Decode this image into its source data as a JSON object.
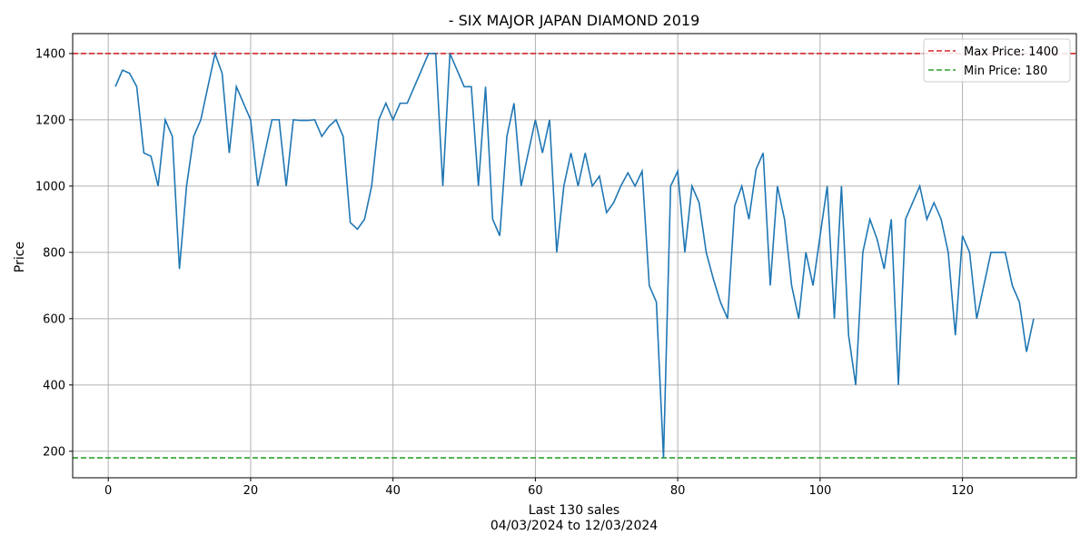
{
  "chart_data": {
    "type": "line",
    "title": "- SIX MAJOR JAPAN DIAMOND 2019",
    "xlabel": "Last 130 sales",
    "xlabel_sub": "04/03/2024 to 12/03/2024",
    "ylabel": "Price",
    "xlim": [
      -5,
      136
    ],
    "ylim": [
      120,
      1460
    ],
    "x_ticks": [
      0,
      20,
      40,
      60,
      80,
      100,
      120
    ],
    "y_ticks": [
      200,
      400,
      600,
      800,
      1000,
      1200,
      1400
    ],
    "grid": true,
    "legend_position": "top-right",
    "series": [
      {
        "color": "#1f77b4",
        "x": [
          1,
          2,
          3,
          4,
          5,
          6,
          7,
          8,
          9,
          10,
          11,
          12,
          13,
          14,
          15,
          16,
          17,
          18,
          19,
          20,
          21,
          22,
          23,
          24,
          25,
          26,
          27,
          28,
          29,
          30,
          31,
          32,
          33,
          34,
          35,
          36,
          37,
          38,
          39,
          40,
          41,
          42,
          43,
          44,
          45,
          46,
          47,
          48,
          49,
          50,
          51,
          52,
          53,
          54,
          55,
          56,
          57,
          58,
          59,
          60,
          61,
          62,
          63,
          64,
          65,
          66,
          67,
          68,
          69,
          70,
          71,
          72,
          73,
          74,
          75,
          76,
          77,
          78,
          79,
          80,
          81,
          82,
          83,
          84,
          85,
          86,
          87,
          88,
          89,
          90,
          91,
          92,
          93,
          94,
          95,
          96,
          97,
          98,
          99,
          100,
          101,
          102,
          103,
          104,
          105,
          106,
          107,
          108,
          109,
          110,
          111,
          112,
          113,
          114,
          115,
          116,
          117,
          118,
          119,
          120,
          121,
          122,
          123,
          124,
          125,
          126,
          127,
          128,
          129,
          130
        ],
        "values": [
          1300,
          1350,
          1340,
          1300,
          1100,
          1090,
          1000,
          1200,
          1150,
          750,
          1000,
          1150,
          1200,
          1300,
          1400,
          1340,
          1100,
          1300,
          1250,
          1200,
          1000,
          1100,
          1200,
          1200,
          1000,
          1200,
          1198,
          1198,
          1200,
          1150,
          1180,
          1200,
          1150,
          890,
          870,
          900,
          1000,
          1200,
          1250,
          1200,
          1250,
          1250,
          1300,
          1350,
          1400,
          1400,
          1000,
          1400,
          1350,
          1300,
          1300,
          1000,
          1300,
          900,
          850,
          1150,
          1250,
          1000,
          1100,
          1200,
          1100,
          1200,
          800,
          1000,
          1100,
          1000,
          1100,
          1000,
          1030,
          920,
          950,
          1000,
          1040,
          1000,
          1045,
          700,
          650,
          180,
          1000,
          1045,
          800,
          1000,
          950,
          800,
          720,
          650,
          600,
          940,
          1000,
          900,
          1050,
          1100,
          700,
          1000,
          900,
          700,
          600,
          800,
          700,
          850,
          1000,
          600,
          1000,
          550,
          400,
          800,
          900,
          840,
          750,
          900,
          400,
          900,
          950,
          1000,
          900,
          950,
          900,
          800,
          550,
          850,
          800,
          600,
          700,
          800,
          800,
          800,
          700,
          650,
          500,
          600
        ]
      }
    ],
    "reference_lines": [
      {
        "label": "Max Price: 1400",
        "value": 1400,
        "color": "#d62728"
      },
      {
        "label": "Min Price: 180",
        "value": 180,
        "color": "#2ca02c"
      }
    ]
  }
}
